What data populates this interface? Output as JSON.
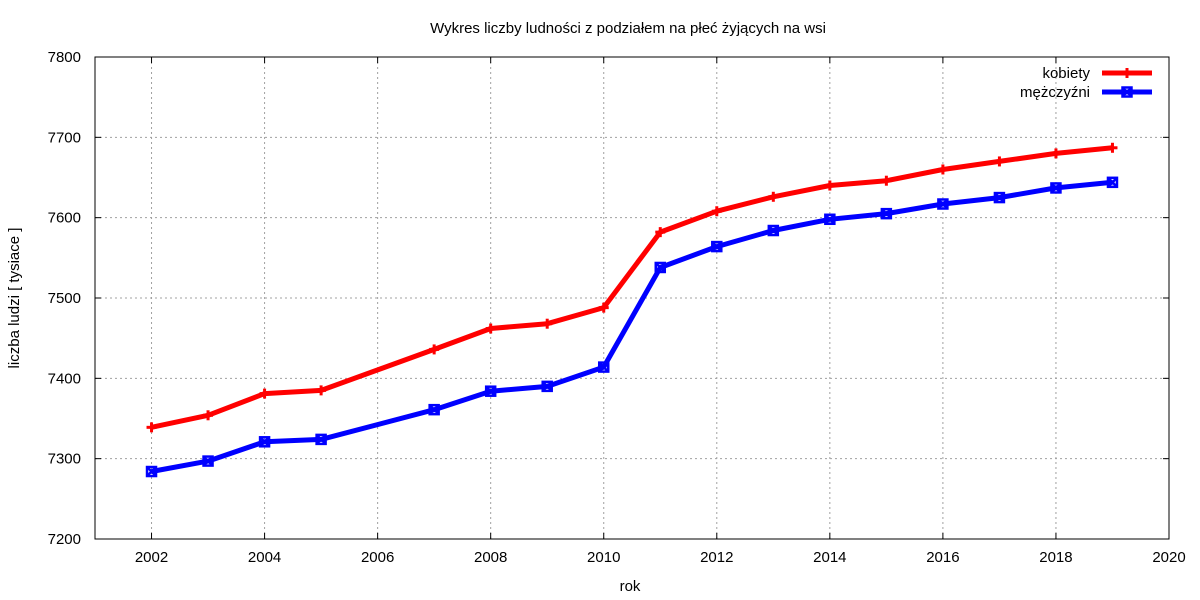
{
  "chart_data": {
    "type": "line",
    "title": "Wykres liczby ludności z podziałem na płeć żyjących na wsi",
    "xlabel": "rok",
    "ylabel": "liczba ludzi [ tysiace ]",
    "xlim": [
      2001,
      2020
    ],
    "ylim": [
      7200,
      7800
    ],
    "xticks": [
      2002,
      2004,
      2006,
      2008,
      2010,
      2012,
      2014,
      2016,
      2018,
      2020
    ],
    "yticks": [
      7200,
      7300,
      7400,
      7500,
      7600,
      7700,
      7800
    ],
    "grid": true,
    "legend_position": "top-right",
    "x": [
      2002,
      2003,
      2004,
      2005,
      2007,
      2008,
      2009,
      2010,
      2011,
      2012,
      2013,
      2014,
      2015,
      2016,
      2017,
      2018,
      2019
    ],
    "series": [
      {
        "name": "kobiety",
        "color": "#ff0000",
        "marker": "plus",
        "values": [
          7339,
          7354,
          7381,
          7385,
          7436,
          7462,
          7468,
          7488,
          7582,
          7608,
          7626,
          7640,
          7646,
          7660,
          7670,
          7680,
          7687
        ]
      },
      {
        "name": "mężczyźni",
        "color": "#0000ff",
        "marker": "cross-square",
        "values": [
          7284,
          7297,
          7321,
          7324,
          7361,
          7384,
          7390,
          7414,
          7538,
          7564,
          7584,
          7598,
          7605,
          7617,
          7625,
          7637,
          7644
        ]
      }
    ]
  }
}
